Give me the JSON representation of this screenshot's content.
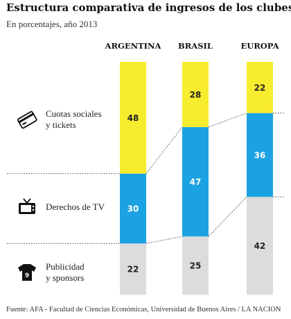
{
  "title": "Estructura comparativa de ingresos de los clubes",
  "subtitle": "En porcentajes, año 2013",
  "legend": [
    {
      "label": "Cuotas sociales\ny tickets",
      "icon": "credit-card-icon",
      "color": "#f8ec2e"
    },
    {
      "label": "Derechos de TV",
      "icon": "tv-icon",
      "color": "#1ba2e2"
    },
    {
      "label": "Publicidad\ny sponsors",
      "icon": "jersey-icon",
      "color": "#dcdcdc"
    }
  ],
  "source": "Fuente: AFA - Facultad de Ciencias Económicas, Universidad de Buenos Aires / LA NACION",
  "chart_data": {
    "type": "bar",
    "stacked": true,
    "categories": [
      "ARGENTINA",
      "BRASIL",
      "EUROPA"
    ],
    "series": [
      {
        "name": "Publicidad y sponsors",
        "values": [
          22,
          25,
          42
        ],
        "color": "#dcdcdc"
      },
      {
        "name": "Derechos de TV",
        "values": [
          30,
          47,
          36
        ],
        "color": "#1ba2e2"
      },
      {
        "name": "Cuotas sociales y tickets",
        "values": [
          48,
          28,
          22
        ],
        "color": "#f8ec2e"
      }
    ],
    "ylim": [
      0,
      100
    ],
    "grid": false
  }
}
